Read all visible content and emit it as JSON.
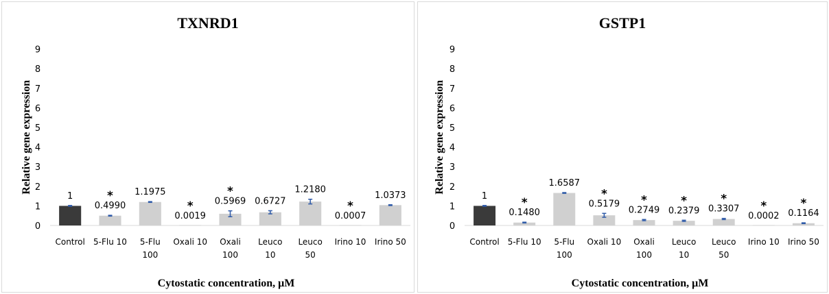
{
  "chart_data": [
    {
      "type": "bar",
      "title": "TXNRD1",
      "xlabel": "Cytostatic concentration, μM",
      "ylabel": "Relative gene expression",
      "ylim": [
        0,
        9
      ],
      "yticks": [
        0,
        1,
        2,
        3,
        4,
        5,
        6,
        7,
        8,
        9
      ],
      "grid": false,
      "categories": [
        [
          "Control"
        ],
        [
          "5-Flu 10"
        ],
        [
          "5-Flu",
          "100"
        ],
        [
          "Oxali 10"
        ],
        [
          "Oxali",
          "100"
        ],
        [
          "Leuco",
          "10"
        ],
        [
          "Leuco",
          "50"
        ],
        [
          "Irino 10"
        ],
        [
          "Irino 50"
        ]
      ],
      "values": [
        1,
        0.499,
        1.1975,
        0.0019,
        0.5969,
        0.6727,
        1.218,
        0.0007,
        1.0373
      ],
      "data_labels": [
        "1",
        "0.4990",
        "1.1975",
        "0.0019",
        "0.5969",
        "0.6727",
        "1.2180",
        "0.0007",
        "1.0373"
      ],
      "errors": [
        0.02,
        0.02,
        0.02,
        0,
        0.15,
        0.08,
        0.12,
        0,
        0.02
      ],
      "significant": [
        false,
        true,
        false,
        true,
        true,
        false,
        false,
        true,
        false
      ],
      "significance_marker": "*",
      "colors": [
        "#3a3a3a",
        "#d0d0d0",
        "#d0d0d0",
        "#d0d0d0",
        "#d0d0d0",
        "#d0d0d0",
        "#d0d0d0",
        "#d0d0d0",
        "#d0d0d0"
      ],
      "error_color": "#2e5aa8"
    },
    {
      "type": "bar",
      "title": "GSTP1",
      "xlabel": "Cytostatic concentration, μM",
      "ylabel": "Relative gene expression",
      "ylim": [
        0,
        9
      ],
      "yticks": [
        0,
        1,
        2,
        3,
        4,
        5,
        6,
        7,
        8,
        9
      ],
      "grid": false,
      "categories": [
        [
          "Control"
        ],
        [
          "5-Flu 10"
        ],
        [
          "5-Flu",
          "100"
        ],
        [
          "Oxali 10"
        ],
        [
          "Oxali",
          "100"
        ],
        [
          "Leuco",
          "10"
        ],
        [
          "Leuco",
          "50"
        ],
        [
          "Irino 10"
        ],
        [
          "Irino 50"
        ]
      ],
      "values": [
        1,
        0.148,
        1.6587,
        0.5179,
        0.2749,
        0.2379,
        0.3307,
        0.0002,
        0.1164
      ],
      "data_labels": [
        "1",
        "0.1480",
        "1.6587",
        "0.5179",
        "0.2749",
        "0.2379",
        "0.3307",
        "0.0002",
        "0.1164"
      ],
      "errors": [
        0.02,
        0.02,
        0.02,
        0.1,
        0.03,
        0.03,
        0.03,
        0,
        0.02
      ],
      "significant": [
        false,
        true,
        false,
        true,
        true,
        true,
        true,
        true,
        true
      ],
      "significance_marker": "*",
      "colors": [
        "#3a3a3a",
        "#d0d0d0",
        "#d0d0d0",
        "#d0d0d0",
        "#d0d0d0",
        "#d0d0d0",
        "#d0d0d0",
        "#d0d0d0",
        "#d0d0d0"
      ],
      "error_color": "#2e5aa8"
    }
  ]
}
